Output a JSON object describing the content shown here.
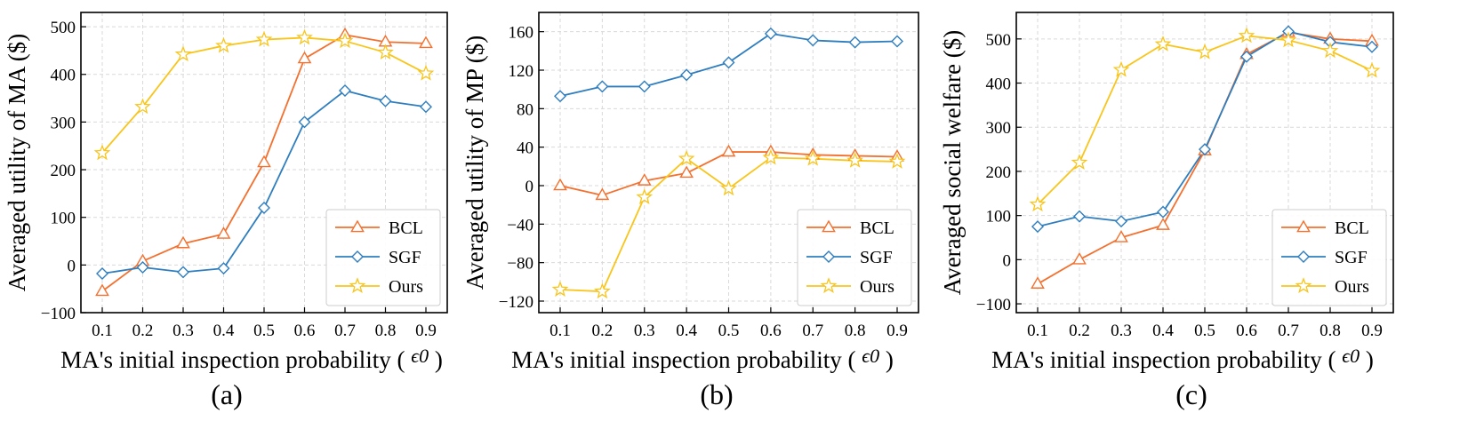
{
  "chart_data": [
    {
      "type": "line",
      "panel_label": "(a)",
      "xlabel": "MA's initial inspection probability (",
      "xlabel_symbol": "ϵ0",
      "xlabel_close": ")",
      "ylabel": "Averaged utility of MA ($)",
      "x": [
        0.1,
        0.2,
        0.3,
        0.4,
        0.5,
        0.6,
        0.7,
        0.8,
        0.9
      ],
      "x_ticks": [
        "0.1",
        "0.2",
        "0.3",
        "0.4",
        "0.5",
        "0.6",
        "0.7",
        "0.8",
        "0.9"
      ],
      "ylim": [
        -100,
        530
      ],
      "y_ticks": [
        -100,
        0,
        100,
        200,
        300,
        400,
        500
      ],
      "y_tick_labels": [
        "−100",
        "0",
        "100",
        "200",
        "300",
        "400",
        "500"
      ],
      "legend_position": "lower-right",
      "series": [
        {
          "name": "BCL",
          "color": "#F4702E",
          "marker": "triangle",
          "values": [
            -55,
            8,
            45,
            65,
            215,
            433,
            483,
            468,
            465
          ]
        },
        {
          "name": "SGF",
          "color": "#2E7EBF",
          "marker": "diamond",
          "values": [
            -18,
            -5,
            -15,
            -7,
            120,
            300,
            366,
            344,
            332
          ]
        },
        {
          "name": "Ours",
          "color": "#F9C51B",
          "marker": "star",
          "values": [
            235,
            332,
            442,
            460,
            473,
            477,
            470,
            446,
            402
          ]
        }
      ]
    },
    {
      "type": "line",
      "panel_label": "(b)",
      "xlabel": "MA's initial inspection probability (",
      "xlabel_symbol": "ϵ0",
      "xlabel_close": ")",
      "ylabel": "Averaged utility of MP ($)",
      "x": [
        0.1,
        0.2,
        0.3,
        0.4,
        0.5,
        0.6,
        0.7,
        0.8,
        0.9
      ],
      "x_ticks": [
        "0.1",
        "0.2",
        "0.3",
        "0.4",
        "0.5",
        "0.6",
        "0.7",
        "0.8",
        "0.9"
      ],
      "ylim": [
        -132,
        180
      ],
      "y_ticks": [
        -120,
        -80,
        -40,
        0,
        40,
        80,
        120,
        160
      ],
      "y_tick_labels": [
        "−120",
        "−80",
        "−40",
        "0",
        "40",
        "80",
        "120",
        "160"
      ],
      "legend_position": "lower-right",
      "series": [
        {
          "name": "BCL",
          "color": "#F4702E",
          "marker": "triangle",
          "values": [
            0,
            -10,
            5,
            13,
            35,
            35,
            32,
            31,
            30
          ]
        },
        {
          "name": "SGF",
          "color": "#2E7EBF",
          "marker": "diamond",
          "values": [
            93,
            103,
            103,
            115,
            128,
            158,
            151,
            149,
            150
          ]
        },
        {
          "name": "Ours",
          "color": "#F9C51B",
          "marker": "star",
          "values": [
            -108,
            -110,
            -12,
            28,
            -3,
            29,
            28,
            26,
            25
          ]
        }
      ]
    },
    {
      "type": "line",
      "panel_label": "(c)",
      "xlabel": "MA's initial inspection probability (",
      "xlabel_symbol": "ϵ0",
      "xlabel_close": ")",
      "ylabel": "Averaged social welfare ($)",
      "x": [
        0.1,
        0.2,
        0.3,
        0.4,
        0.5,
        0.6,
        0.7,
        0.8,
        0.9
      ],
      "x_ticks": [
        "0.1",
        "0.2",
        "0.3",
        "0.4",
        "0.5",
        "0.6",
        "0.7",
        "0.8",
        "0.9"
      ],
      "ylim": [
        -120,
        560
      ],
      "y_ticks": [
        -100,
        0,
        100,
        200,
        300,
        400,
        500
      ],
      "y_tick_labels": [
        "−100",
        "0",
        "100",
        "200",
        "300",
        "400",
        "500"
      ],
      "legend_position": "lower-right",
      "series": [
        {
          "name": "BCL",
          "color": "#F4702E",
          "marker": "triangle",
          "values": [
            -55,
            0,
            50,
            78,
            247,
            465,
            515,
            500,
            495
          ]
        },
        {
          "name": "SGF",
          "color": "#2E7EBF",
          "marker": "diamond",
          "values": [
            75,
            98,
            87,
            108,
            250,
            460,
            517,
            493,
            482
          ]
        },
        {
          "name": "Ours",
          "color": "#F9C51B",
          "marker": "star",
          "values": [
            125,
            220,
            430,
            488,
            470,
            507,
            497,
            473,
            428
          ]
        }
      ]
    }
  ]
}
